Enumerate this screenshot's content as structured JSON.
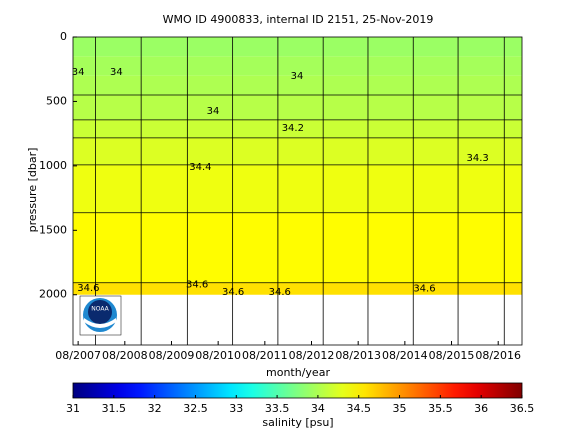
{
  "chart_data": {
    "type": "contour",
    "title": "WMO ID 4900833, internal ID 2151, 25-Nov-2019",
    "xlabel": "month/year",
    "ylabel": "pressure [dbar]",
    "xlim": [
      2007.47,
      2017.09
    ],
    "xticks": [
      {
        "value": 2007.58,
        "label": "08/2007"
      },
      {
        "value": 2008.58,
        "label": "08/2008"
      },
      {
        "value": 2009.58,
        "label": "08/2009"
      },
      {
        "value": 2010.58,
        "label": "08/2010"
      },
      {
        "value": 2011.58,
        "label": "08/2011"
      },
      {
        "value": 2012.58,
        "label": "08/2012"
      },
      {
        "value": 2013.58,
        "label": "08/2013"
      },
      {
        "value": 2014.58,
        "label": "08/2014"
      },
      {
        "value": 2015.58,
        "label": "08/2015"
      },
      {
        "value": 2016.58,
        "label": "08/2016"
      }
    ],
    "ylim": [
      0,
      2390
    ],
    "y_reversed": true,
    "yticks": [
      0,
      500,
      1000,
      1500,
      2000
    ],
    "year_lines": [
      2007.95,
      2008.93,
      2009.92,
      2010.89,
      2011.86,
      2012.83,
      2013.79,
      2014.76,
      2015.72,
      2016.71
    ],
    "pressure": [
      0,
      150,
      300,
      450,
      643,
      783,
      992,
      1364,
      1907,
      2000
    ],
    "salinity": [
      33.9,
      33.95,
      34.0,
      34.05,
      34.15,
      34.25,
      34.35,
      34.45,
      34.6
    ],
    "contours": {
      "levels": [
        34.0,
        34.1,
        34.2,
        34.3,
        34.4,
        34.6
      ],
      "pressure": [
        450,
        643,
        783,
        992,
        1364,
        1907
      ]
    },
    "contour_labels": [
      {
        "text": "34",
        "x": 2007.58,
        "y": 270
      },
      {
        "text": "34",
        "x": 2008.4,
        "y": 270
      },
      {
        "text": "34",
        "x": 2010.47,
        "y": 574
      },
      {
        "text": "34",
        "x": 2012.27,
        "y": 302
      },
      {
        "text": "34.2",
        "x": 2012.18,
        "y": 705
      },
      {
        "text": "34.3",
        "x": 2016.14,
        "y": 938
      },
      {
        "text": "34.4",
        "x": 2010.2,
        "y": 1008
      },
      {
        "text": "34.6",
        "x": 2007.8,
        "y": 1946
      },
      {
        "text": "34.6",
        "x": 2010.13,
        "y": 1922
      },
      {
        "text": "34.6",
        "x": 2010.9,
        "y": 1977
      },
      {
        "text": "34.6",
        "x": 2011.9,
        "y": 1977
      },
      {
        "text": "34.6",
        "x": 2015.0,
        "y": 1953
      }
    ],
    "colorbar": {
      "label": "salinity [psu]",
      "lim": [
        31,
        36.5
      ],
      "ticks": [
        31,
        31.5,
        32,
        32.5,
        33,
        33.5,
        34,
        34.5,
        35,
        35.5,
        36,
        36.5
      ]
    },
    "logo": "NOAA"
  }
}
